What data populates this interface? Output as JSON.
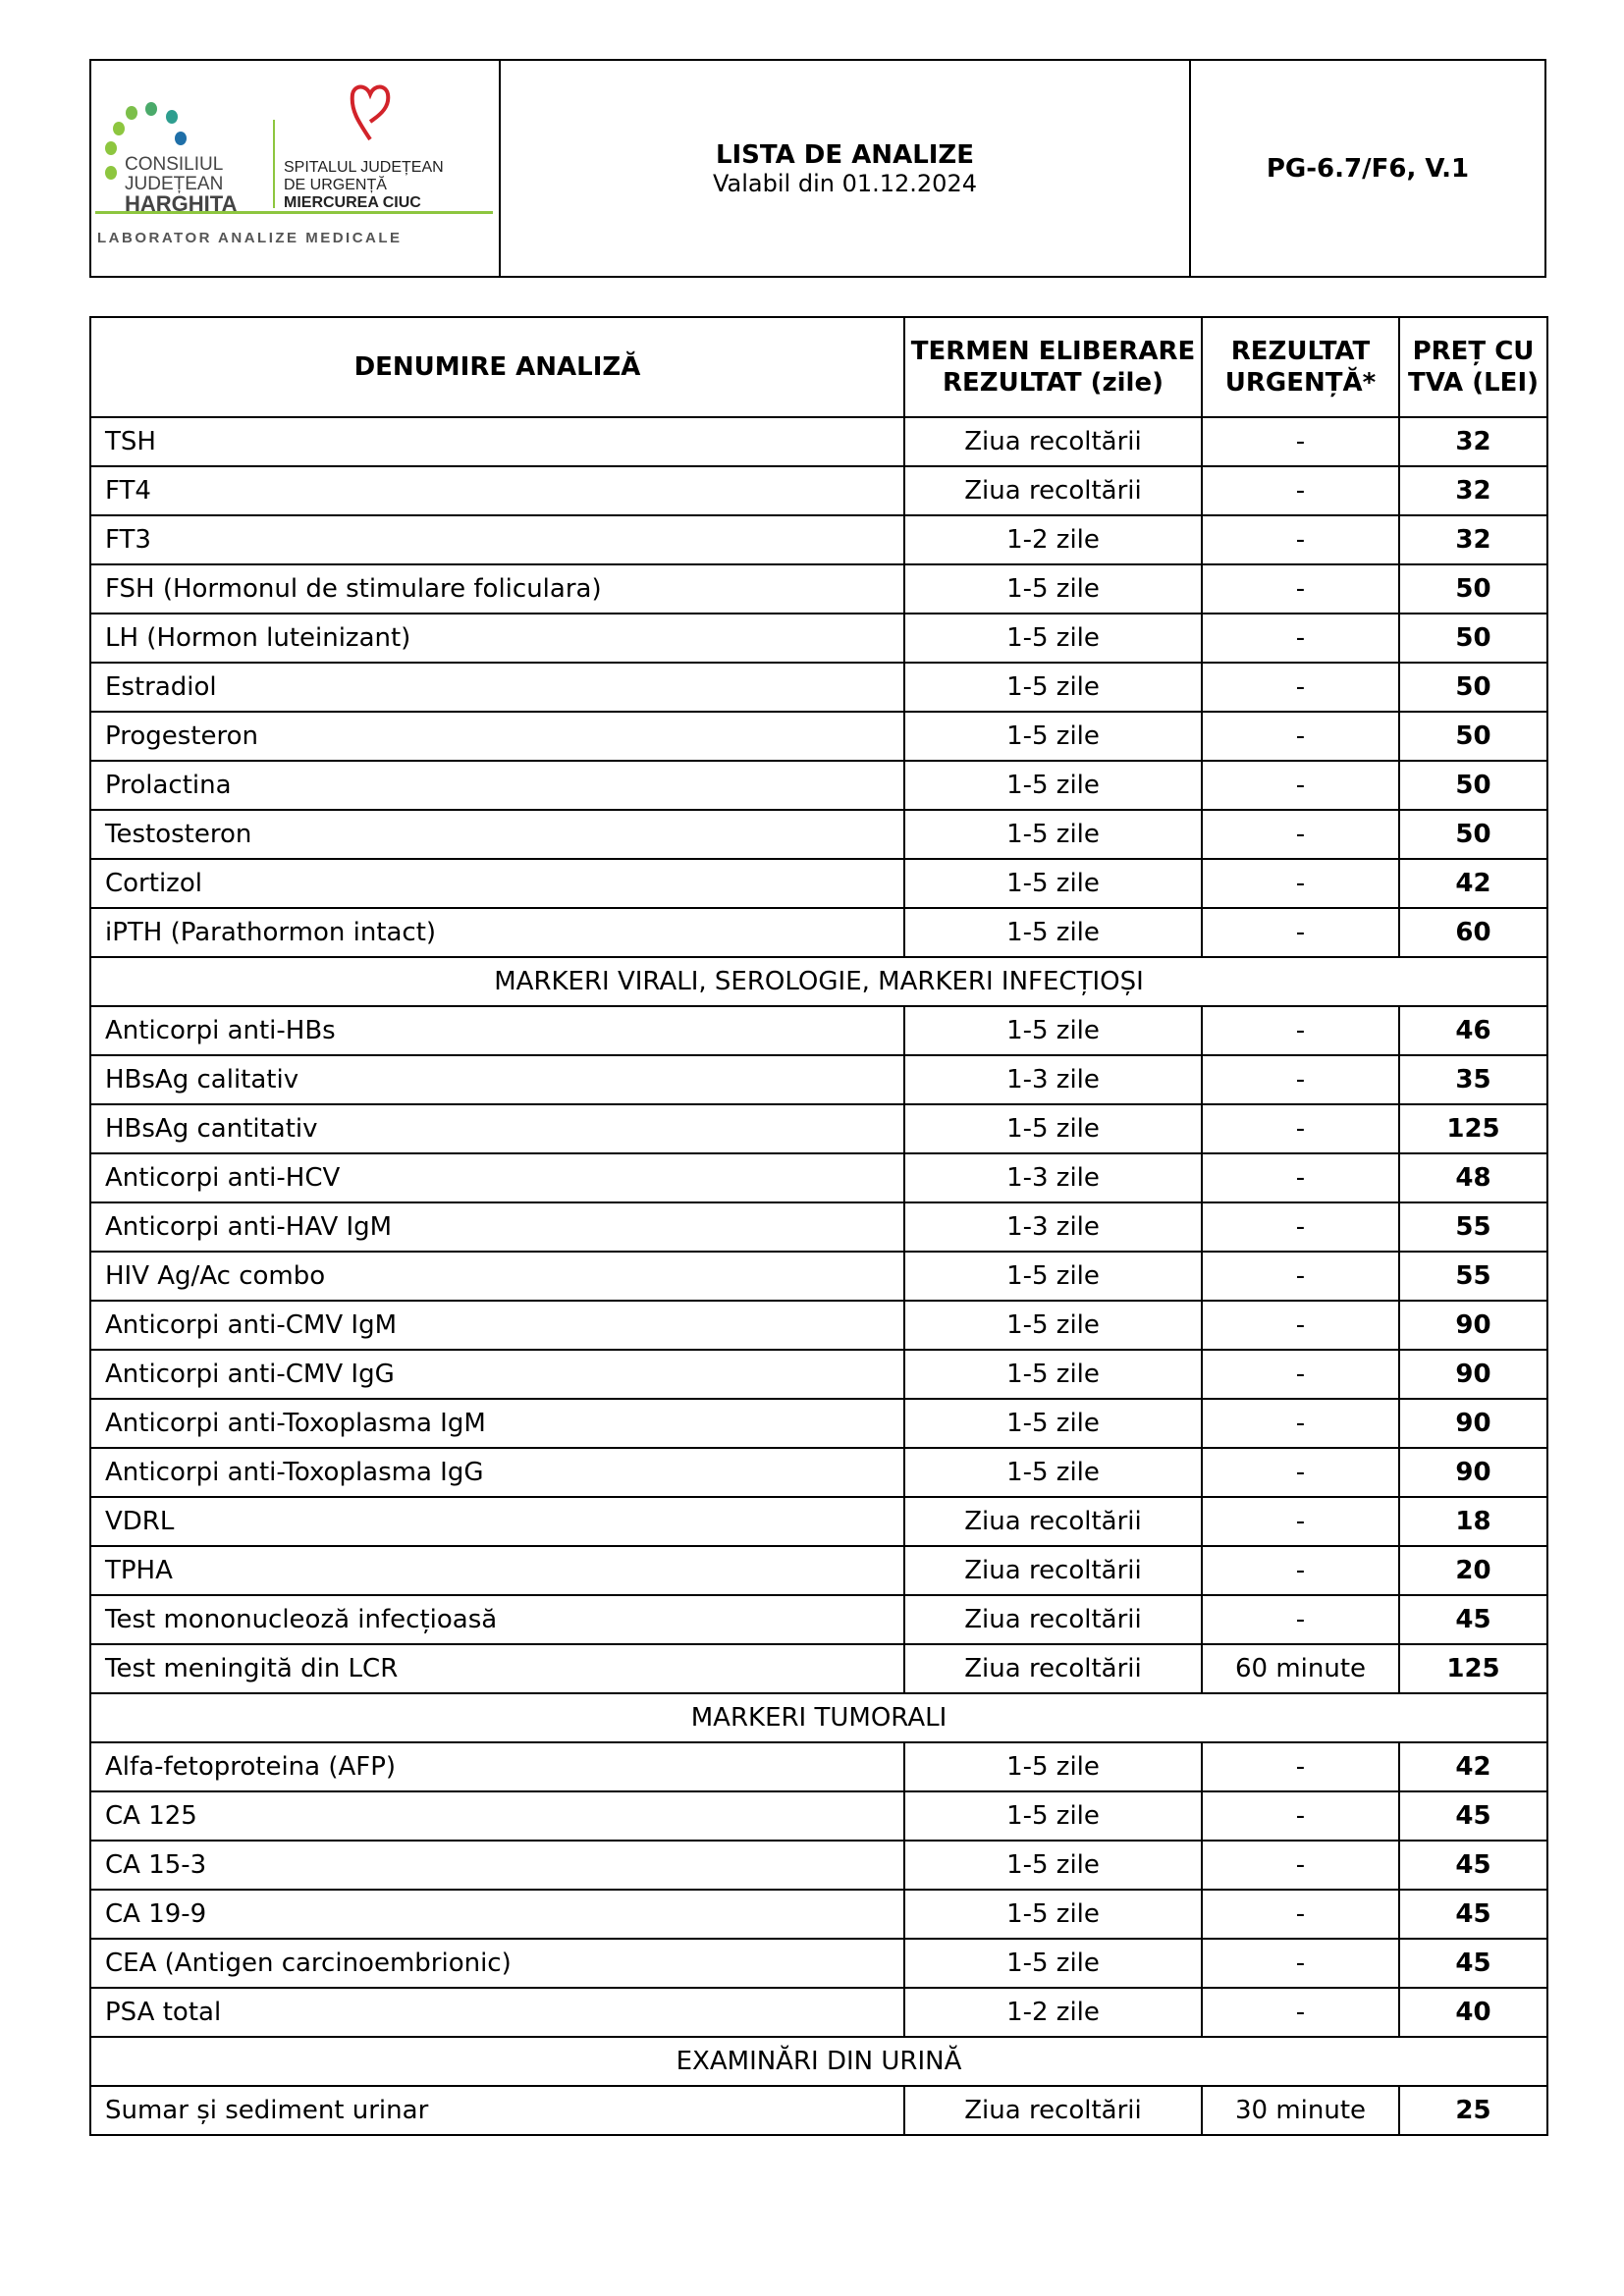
{
  "header": {
    "logo": {
      "council": [
        "CONSILIUL",
        "JUDEȚEAN",
        "HARGHITA"
      ],
      "hospital": [
        "SPITALUL JUDEȚEAN",
        "DE URGENȚĂ",
        "MIERCUREA CIUC"
      ],
      "lab": "LABORATOR ANALIZE MEDICALE"
    },
    "title": "LISTA DE ANALIZE",
    "subtitle": "Valabil din 01.12.2024",
    "code": "PG-6.7/F6, V.1"
  },
  "colors": {
    "green": "#8dc63f",
    "teal": "#2e9e8f",
    "blue": "#1f6fa8",
    "heart": "#d2232a"
  },
  "table": {
    "columns": [
      "DENUMIRE ANALIZĂ",
      "TERMEN ELIBERARE REZULTAT (zile)",
      "REZULTAT URGENȚĂ*",
      "PREȚ CU TVA (LEI)"
    ],
    "rows": [
      {
        "name": "TSH",
        "term": "Ziua recoltării",
        "urg": "-",
        "price": "32"
      },
      {
        "name": "FT4",
        "term": "Ziua recoltării",
        "urg": "-",
        "price": "32"
      },
      {
        "name": "FT3",
        "term": "1-2 zile",
        "urg": "-",
        "price": "32"
      },
      {
        "name": "FSH (Hormonul de stimulare foliculara)",
        "term": "1-5 zile",
        "urg": "-",
        "price": "50"
      },
      {
        "name": "LH (Hormon luteinizant)",
        "term": "1-5 zile",
        "urg": "-",
        "price": "50"
      },
      {
        "name": "Estradiol",
        "term": "1-5 zile",
        "urg": "-",
        "price": "50"
      },
      {
        "name": "Progesteron",
        "term": "1-5 zile",
        "urg": "-",
        "price": "50"
      },
      {
        "name": "Prolactina",
        "term": "1-5 zile",
        "urg": "-",
        "price": "50"
      },
      {
        "name": "Testosteron",
        "term": "1-5 zile",
        "urg": "-",
        "price": "50"
      },
      {
        "name": "Cortizol",
        "term": "1-5 zile",
        "urg": "-",
        "price": "42"
      },
      {
        "name": "iPTH (Parathormon intact)",
        "term": "1-5 zile",
        "urg": "-",
        "price": "60"
      },
      {
        "section": "MARKERI VIRALI, SEROLOGIE, MARKERI INFECȚIOȘI"
      },
      {
        "name": "Anticorpi anti-HBs",
        "term": "1-5 zile",
        "urg": "-",
        "price": "46"
      },
      {
        "name": "HBsAg calitativ",
        "term": "1-3 zile",
        "urg": "-",
        "price": "35"
      },
      {
        "name": "HBsAg cantitativ",
        "term": "1-5 zile",
        "urg": "-",
        "price": "125"
      },
      {
        "name": "Anticorpi anti-HCV",
        "term": "1-3 zile",
        "urg": "-",
        "price": "48"
      },
      {
        "name": "Anticorpi anti-HAV IgM",
        "term": "1-3 zile",
        "urg": "-",
        "price": "55"
      },
      {
        "name": "HIV Ag/Ac combo",
        "term": "1-5 zile",
        "urg": "-",
        "price": "55"
      },
      {
        "name": "Anticorpi anti-CMV IgM",
        "term": "1-5 zile",
        "urg": "-",
        "price": "90"
      },
      {
        "name": "Anticorpi anti-CMV IgG",
        "term": "1-5 zile",
        "urg": "-",
        "price": "90"
      },
      {
        "name": "Anticorpi anti-Toxoplasma IgM",
        "term": "1-5 zile",
        "urg": "-",
        "price": "90"
      },
      {
        "name": "Anticorpi anti-Toxoplasma IgG",
        "term": "1-5 zile",
        "urg": "-",
        "price": "90"
      },
      {
        "name": "VDRL",
        "term": "Ziua recoltării",
        "urg": "-",
        "price": "18"
      },
      {
        "name": "TPHA",
        "term": "Ziua recoltării",
        "urg": "-",
        "price": "20"
      },
      {
        "name": "Test mononucleoză infecțioasă",
        "term": "Ziua recoltării",
        "urg": "-",
        "price": "45"
      },
      {
        "name": "Test meningită din LCR",
        "term": "Ziua recoltării",
        "urg": "60 minute",
        "price": "125"
      },
      {
        "section": "MARKERI TUMORALI"
      },
      {
        "name": "Alfa-fetoproteina (AFP)",
        "term": "1-5 zile",
        "urg": "-",
        "price": "42"
      },
      {
        "name": "CA 125",
        "term": "1-5 zile",
        "urg": "-",
        "price": "45"
      },
      {
        "name": "CA 15-3",
        "term": "1-5 zile",
        "urg": "-",
        "price": "45"
      },
      {
        "name": "CA 19-9",
        "term": "1-5 zile",
        "urg": "-",
        "price": "45"
      },
      {
        "name": "CEA (Antigen carcinoembrionic)",
        "term": "1-5 zile",
        "urg": "-",
        "price": "45"
      },
      {
        "name": "PSA total",
        "term": "1-2 zile",
        "urg": "-",
        "price": "40"
      },
      {
        "section": "EXAMINĂRI DIN URINĂ"
      },
      {
        "name": "Sumar și sediment urinar",
        "term": "Ziua recoltării",
        "urg": "30 minute",
        "price": "25"
      }
    ]
  }
}
